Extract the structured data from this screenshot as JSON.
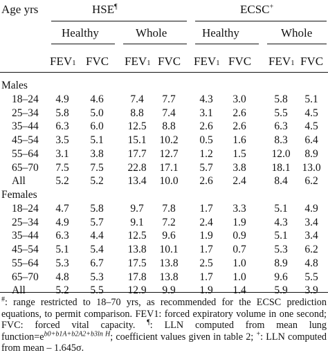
{
  "header": {
    "age_label": "Age yrs",
    "hse_label": "HSE",
    "hse_mark": "¶",
    "ecsc_label": "ECSC",
    "ecsc_mark": "+",
    "healthy_label": "Healthy",
    "whole_label": "Whole",
    "fev_label": "FEV",
    "fev_sub": "1",
    "fvc_label": "FVC"
  },
  "sections": [
    {
      "title": "Males",
      "rows": [
        {
          "age": "18–24",
          "values": [
            "4.9",
            "4.6",
            "7.4",
            "7.7",
            "4.3",
            "3.0",
            "5.8",
            "5.1"
          ]
        },
        {
          "age": "25–34",
          "values": [
            "5.8",
            "5.0",
            "8.8",
            "7.4",
            "3.1",
            "2.6",
            "5.5",
            "4.5"
          ]
        },
        {
          "age": "35–44",
          "values": [
            "6.3",
            "6.0",
            "12.5",
            "8.8",
            "2.6",
            "2.6",
            "6.3",
            "4.5"
          ]
        },
        {
          "age": "45–54",
          "values": [
            "3.5",
            "5.1",
            "15.1",
            "10.2",
            "0.5",
            "1.6",
            "8.3",
            "6.4"
          ]
        },
        {
          "age": "55–64",
          "values": [
            "3.1",
            "3.8",
            "17.7",
            "12.7",
            "1.2",
            "1.5",
            "12.0",
            "8.9"
          ]
        },
        {
          "age": "65–70",
          "values": [
            "7.5",
            "7.5",
            "22.8",
            "17.1",
            "5.7",
            "3.8",
            "18.1",
            "13.0"
          ]
        },
        {
          "age": "All",
          "values": [
            "5.2",
            "5.2",
            "13.4",
            "10.0",
            "2.6",
            "2.4",
            "8.4",
            "6.2"
          ]
        }
      ]
    },
    {
      "title": "Females",
      "rows": [
        {
          "age": "18–24",
          "values": [
            "4.7",
            "5.8",
            "9.7",
            "7.8",
            "1.7",
            "3.3",
            "5.1",
            "4.9"
          ]
        },
        {
          "age": "25–34",
          "values": [
            "4.9",
            "5.7",
            "9.1",
            "7.2",
            "2.4",
            "1.9",
            "4.3",
            "3.4"
          ]
        },
        {
          "age": "35–44",
          "values": [
            "6.3",
            "4.4",
            "12.5",
            "9.6",
            "1.9",
            "0.9",
            "5.1",
            "3.4"
          ]
        },
        {
          "age": "45–54",
          "values": [
            "5.1",
            "5.4",
            "13.8",
            "10.1",
            "1.7",
            "0.7",
            "5.3",
            "6.2"
          ]
        },
        {
          "age": "55–64",
          "values": [
            "5.3",
            "6.7",
            "17.5",
            "13.8",
            "2.5",
            "1.0",
            "8.9",
            "4.8"
          ]
        },
        {
          "age": "65–70",
          "values": [
            "4.8",
            "5.3",
            "17.8",
            "13.8",
            "1.7",
            "1.0",
            "9.6",
            "5.5"
          ]
        },
        {
          "age": "All",
          "values": [
            "5.2",
            "5.5",
            "12.9",
            "9.9",
            "1.9",
            "1.4",
            "5.9",
            "3.9"
          ]
        }
      ]
    }
  ],
  "footnote": {
    "mark1": "#",
    "part1": ": range restricted to 18–70 yrs, as recommended for the ECSC prediction equations, to permit comparison. FEV1: forced expiratory volume in one second; FVC: forced vital capacity. ",
    "mark2": "¶",
    "part2": ": LLN computed from mean lung function=e",
    "exponent": "b0+b1A+b2A2+b3ln H",
    "part3": "; coefficient values given in table 2; ",
    "mark3": "+",
    "part4": ": LLN computed from mean – 1.645σ."
  }
}
